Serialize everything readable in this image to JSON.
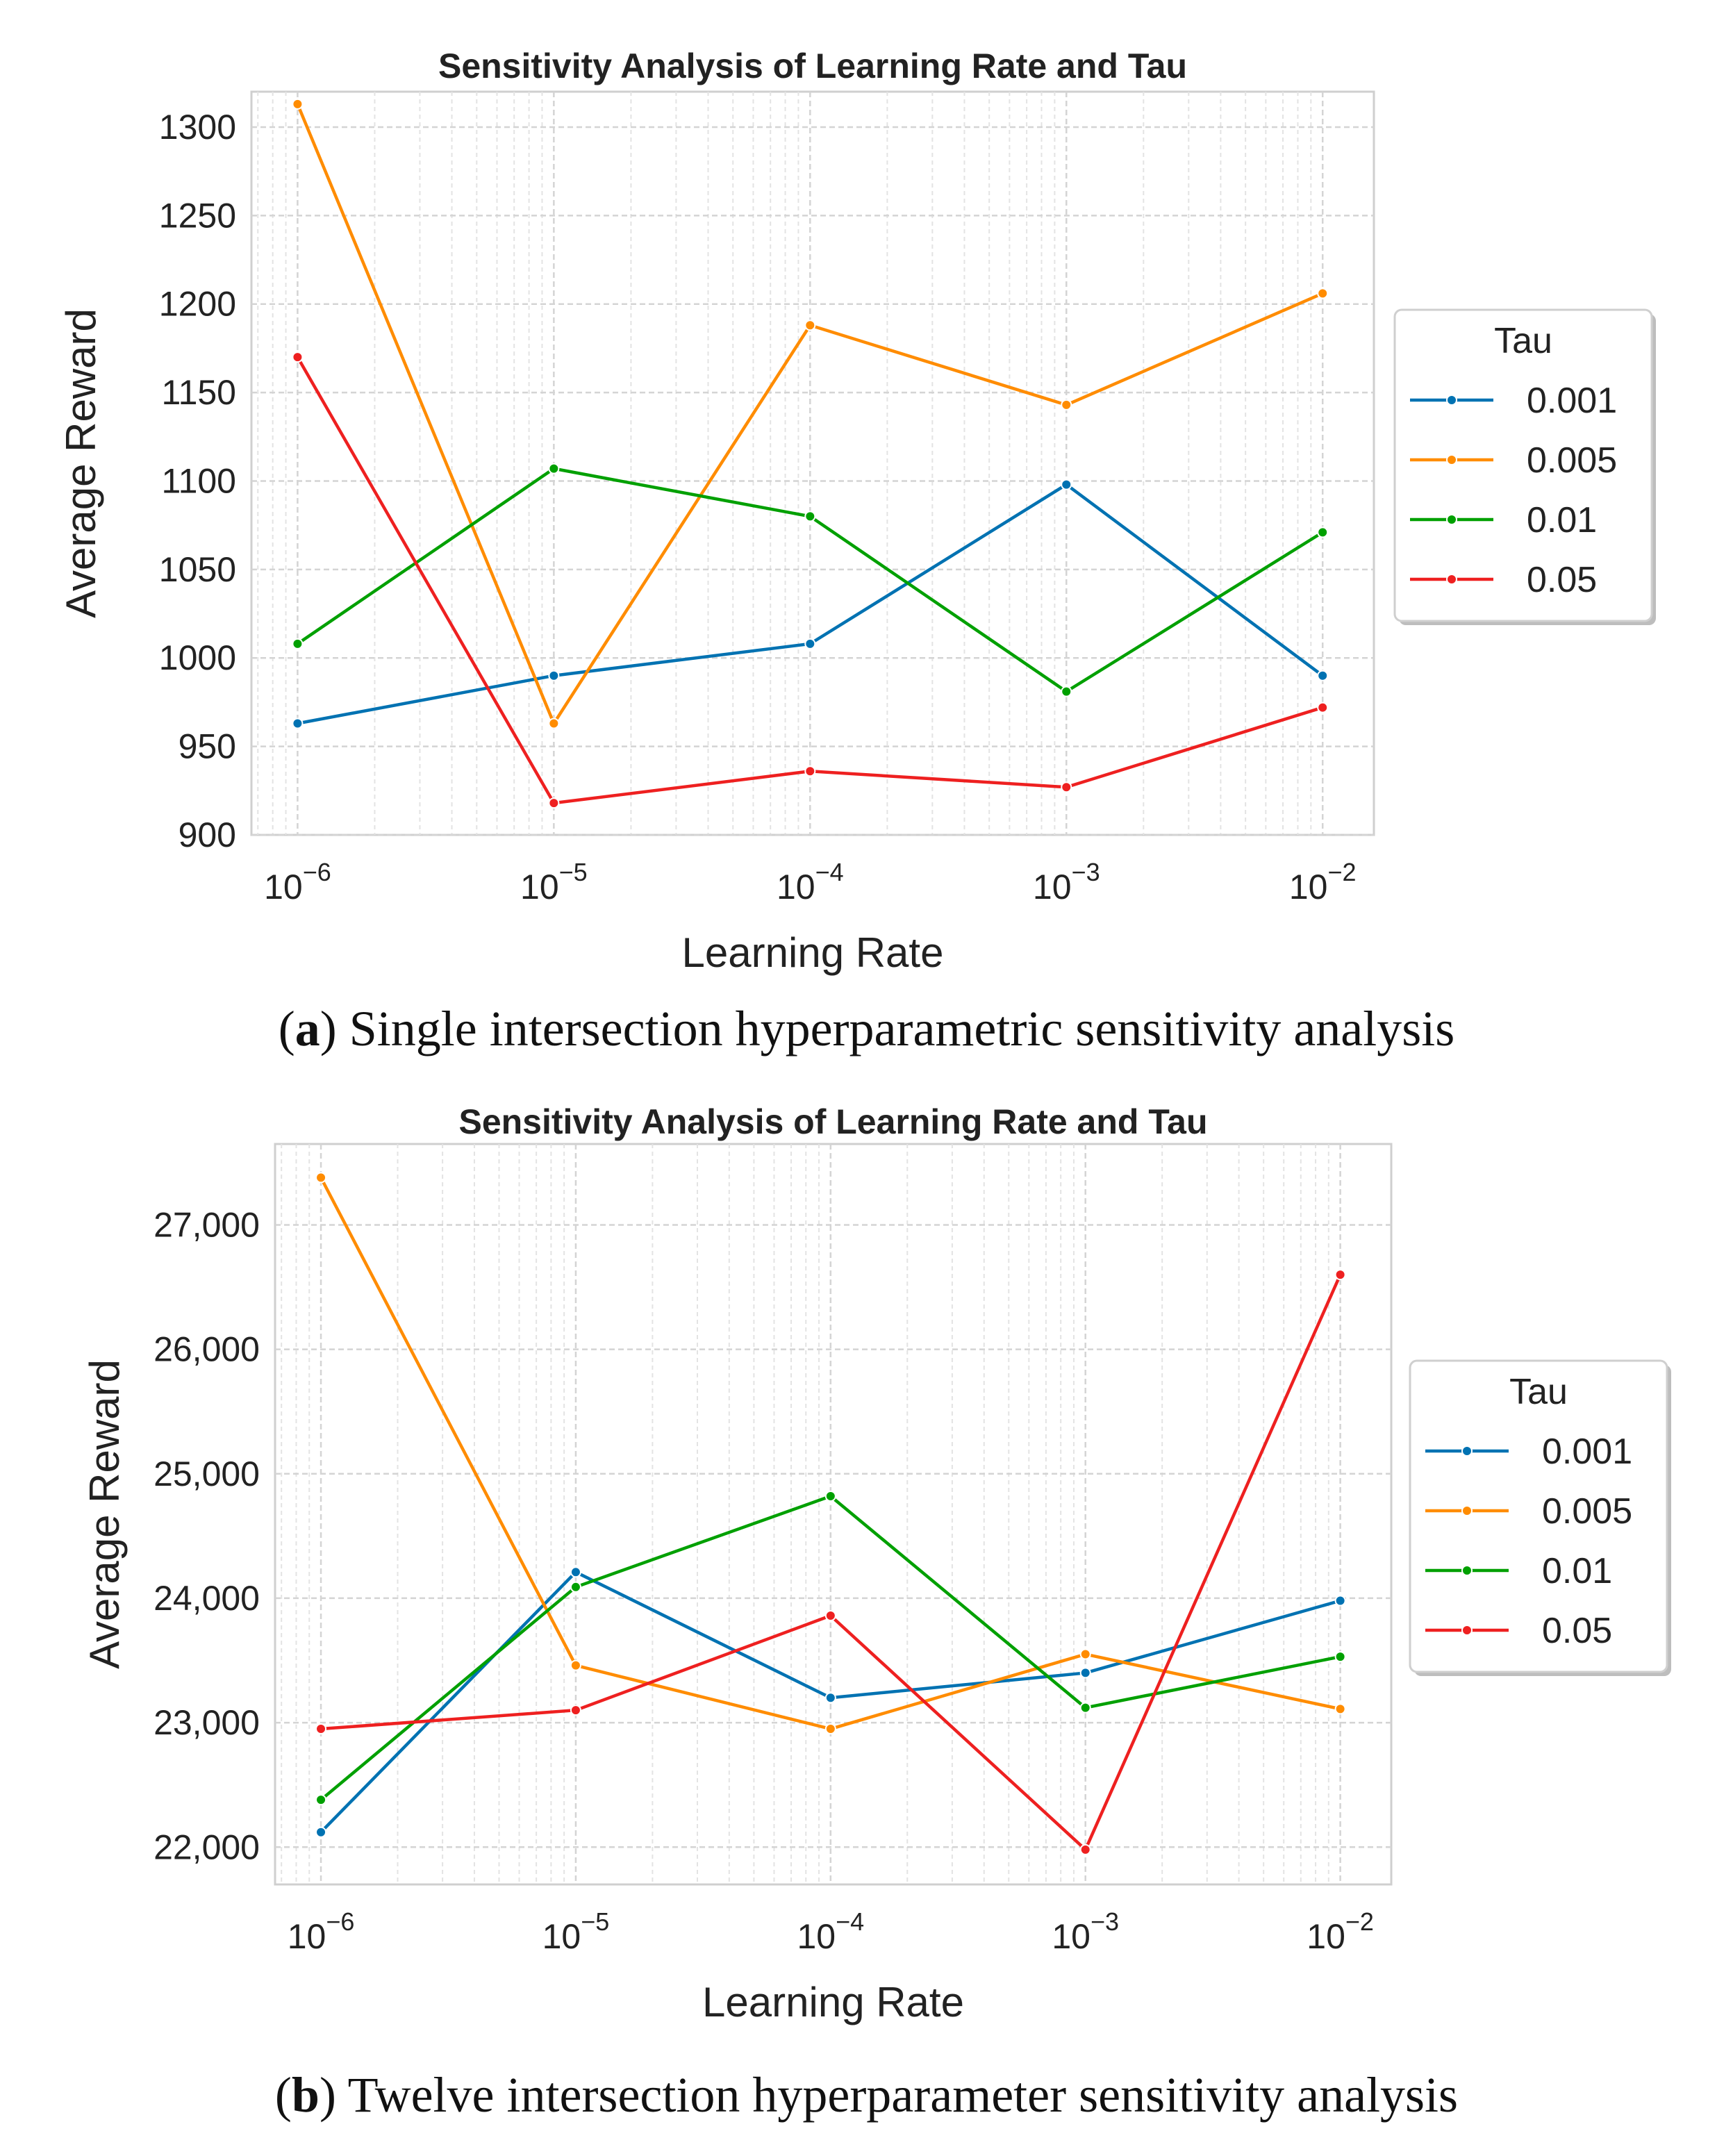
{
  "chart_data": [
    {
      "type": "line",
      "title": "Sensitivity Analysis of Learning Rate and Tau",
      "xlabel": "Learning Rate",
      "ylabel": "Average Reward",
      "xscale": "log",
      "x": [
        1e-06,
        1e-05,
        0.0001,
        0.001,
        0.01
      ],
      "xticklabels": [
        {
          "base": "10",
          "exp": "−6"
        },
        {
          "base": "10",
          "exp": "−5"
        },
        {
          "base": "10",
          "exp": "−4"
        },
        {
          "base": "10",
          "exp": "−3"
        },
        {
          "base": "10",
          "exp": "−2"
        }
      ],
      "xlim_exp": [
        -6.18,
        -1.8
      ],
      "ylim": [
        900,
        1320
      ],
      "yticks": [
        900,
        950,
        1000,
        1050,
        1100,
        1150,
        1200,
        1250,
        1300
      ],
      "yticklabels": [
        "900",
        "950",
        "1000",
        "1050",
        "1100",
        "1150",
        "1200",
        "1250",
        "1300"
      ],
      "grid": true,
      "legend_title": "Tau",
      "legend_position": "right",
      "series": [
        {
          "name": "0.001",
          "color": "#0072B2",
          "values": [
            963,
            990,
            1008,
            1098,
            990
          ]
        },
        {
          "name": "0.005",
          "color": "#FF8C00",
          "values": [
            1313,
            963,
            1188,
            1143,
            1206
          ]
        },
        {
          "name": "0.01",
          "color": "#00A000",
          "values": [
            1008,
            1107,
            1080,
            981,
            1071
          ]
        },
        {
          "name": "0.05",
          "color": "#EE2020",
          "values": [
            1170,
            918,
            936,
            927,
            972
          ]
        }
      ],
      "caption_label": "a",
      "caption_text": "Single intersection hyperparametric sensitivity analysis"
    },
    {
      "type": "line",
      "title": "Sensitivity Analysis of Learning Rate and Tau",
      "xlabel": "Learning Rate",
      "ylabel": "Average Reward",
      "xscale": "log",
      "x": [
        1e-06,
        1e-05,
        0.0001,
        0.001,
        0.01
      ],
      "xticklabels": [
        {
          "base": "10",
          "exp": "−6"
        },
        {
          "base": "10",
          "exp": "−5"
        },
        {
          "base": "10",
          "exp": "−4"
        },
        {
          "base": "10",
          "exp": "−3"
        },
        {
          "base": "10",
          "exp": "−2"
        }
      ],
      "xlim_exp": [
        -6.18,
        -1.8
      ],
      "ylim": [
        21700,
        27650
      ],
      "yticks": [
        22000,
        23000,
        24000,
        25000,
        26000,
        27000
      ],
      "yticklabels": [
        "22,000",
        "23,000",
        "24,000",
        "25,000",
        "26,000",
        "27,000"
      ],
      "grid": true,
      "legend_title": "Tau",
      "legend_position": "right",
      "series": [
        {
          "name": "0.001",
          "color": "#0072B2",
          "values": [
            22120,
            24210,
            23200,
            23400,
            23980
          ]
        },
        {
          "name": "0.005",
          "color": "#FF8C00",
          "values": [
            27380,
            23460,
            22950,
            23550,
            23110
          ]
        },
        {
          "name": "0.01",
          "color": "#00A000",
          "values": [
            22380,
            24090,
            24820,
            23120,
            23530
          ]
        },
        {
          "name": "0.05",
          "color": "#EE2020",
          "values": [
            22950,
            23100,
            23860,
            21980,
            26600
          ]
        }
      ],
      "caption_label": "b",
      "caption_text": "Twelve intersection hyperparameter sensitivity analysis"
    }
  ]
}
